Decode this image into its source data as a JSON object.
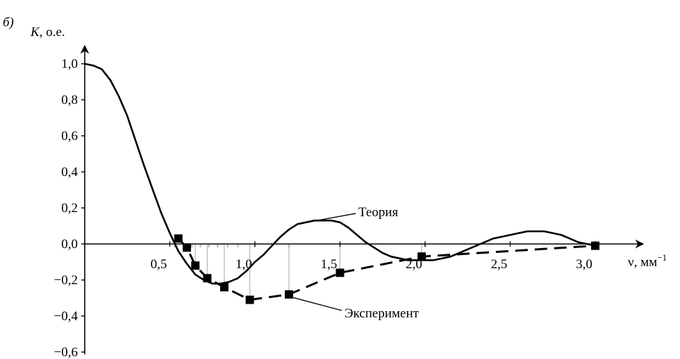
{
  "chart_data": {
    "type": "line",
    "panel_label": "б)",
    "ylabel_var": "K",
    "ylabel_unit": ", о.е.",
    "xlabel": "ν, мм",
    "xlabel_sup": "−1",
    "xlim": [
      0,
      3.0
    ],
    "ylim": [
      -0.6,
      1.0
    ],
    "grid": false,
    "x_ticks": [
      {
        "value": 0.5,
        "label": "0,5"
      },
      {
        "value": 1.0,
        "label": "1,0"
      },
      {
        "value": 1.5,
        "label": "1,5"
      },
      {
        "value": 2.0,
        "label": "2,0"
      },
      {
        "value": 2.5,
        "label": "2,5"
      },
      {
        "value": 3.0,
        "label": "3,0"
      }
    ],
    "y_ticks": [
      {
        "value": 1.0,
        "label": "1,0"
      },
      {
        "value": 0.8,
        "label": "0,8"
      },
      {
        "value": 0.6,
        "label": "0,6"
      },
      {
        "value": 0.4,
        "label": "0,4"
      },
      {
        "value": 0.2,
        "label": "0,2"
      },
      {
        "value": 0.0,
        "label": "0,0"
      },
      {
        "value": -0.2,
        "label": "−0,2"
      },
      {
        "value": -0.4,
        "label": "−0,4"
      },
      {
        "value": -0.6,
        "label": "−0,6"
      }
    ],
    "series": [
      {
        "name": "Теория",
        "style": "solid",
        "color": "#000000",
        "x": [
          0,
          0.05,
          0.1,
          0.15,
          0.2,
          0.25,
          0.3,
          0.35,
          0.4,
          0.45,
          0.5,
          0.55,
          0.6,
          0.65,
          0.7,
          0.75,
          0.8,
          0.85,
          0.9,
          0.95,
          1.0,
          1.05,
          1.1,
          1.15,
          1.2,
          1.25,
          1.3,
          1.35,
          1.4,
          1.45,
          1.5,
          1.55,
          1.6,
          1.65,
          1.7,
          1.75,
          1.8,
          1.85,
          1.9,
          1.95,
          2.0,
          2.05,
          2.1,
          2.15,
          2.2,
          2.25,
          2.3,
          2.35,
          2.4,
          2.45,
          2.5,
          2.55,
          2.6,
          2.65,
          2.7,
          2.75,
          2.8,
          2.85,
          2.9,
          2.95,
          3.0
        ],
        "y": [
          1.0,
          0.99,
          0.97,
          0.91,
          0.82,
          0.71,
          0.57,
          0.43,
          0.3,
          0.17,
          0.06,
          -0.04,
          -0.11,
          -0.17,
          -0.2,
          -0.22,
          -0.22,
          -0.21,
          -0.19,
          -0.15,
          -0.1,
          -0.06,
          -0.01,
          0.04,
          0.08,
          0.11,
          0.12,
          0.13,
          0.13,
          0.13,
          0.12,
          0.09,
          0.05,
          0.01,
          -0.02,
          -0.05,
          -0.07,
          -0.08,
          -0.09,
          -0.09,
          -0.09,
          -0.09,
          -0.08,
          -0.07,
          -0.05,
          -0.03,
          -0.01,
          0.01,
          0.03,
          0.04,
          0.05,
          0.06,
          0.07,
          0.07,
          0.07,
          0.06,
          0.05,
          0.03,
          0.01,
          0.0,
          -0.01
        ]
      },
      {
        "name": "Эксперимент",
        "style": "dashed",
        "color": "#000000",
        "marker": "square",
        "x": [
          0.55,
          0.6,
          0.65,
          0.72,
          0.82,
          0.97,
          1.2,
          1.5,
          1.98,
          3.0
        ],
        "y": [
          0.03,
          -0.02,
          -0.12,
          -0.19,
          -0.24,
          -0.31,
          -0.28,
          -0.16,
          -0.07,
          -0.01
        ]
      }
    ],
    "annotations": [
      {
        "text": "Теория",
        "target_x": 1.32,
        "target_y": 0.13
      },
      {
        "text": "Эксперимент",
        "target_x": 1.2,
        "target_y": -0.28
      }
    ]
  }
}
